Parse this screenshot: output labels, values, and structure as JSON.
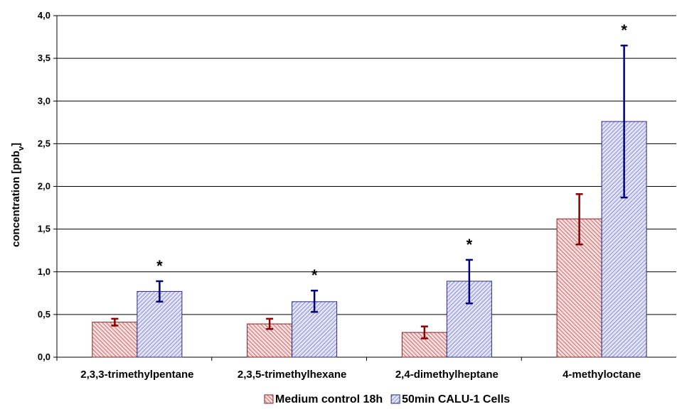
{
  "chart_data": {
    "type": "bar",
    "categories": [
      "2,3,3-trimethylpentane",
      "2,3,5-trimethylhexane",
      "2,4-dimethylheptane",
      "4-methyloctane"
    ],
    "series": [
      {
        "name": "Medium control 18h",
        "values": [
          0.41,
          0.39,
          0.29,
          1.62
        ],
        "error_low": [
          0.37,
          0.33,
          0.22,
          1.32
        ],
        "error_high": [
          0.45,
          0.45,
          0.36,
          1.91
        ],
        "color": "#c0504d",
        "error_color": "#8b0000"
      },
      {
        "name": "50min CALU-1 Cells",
        "values": [
          0.77,
          0.65,
          0.89,
          2.76
        ],
        "error_low": [
          0.65,
          0.53,
          0.63,
          1.87
        ],
        "error_high": [
          0.89,
          0.78,
          1.14,
          3.65
        ],
        "color": "#6b6fc2",
        "error_color": "#000080"
      }
    ],
    "annotations": [
      "*",
      "*",
      "*",
      "*"
    ],
    "ylabel_main": "concentration",
    "ylabel_unit_prefix": "[ppb",
    "ylabel_unit_sub": "v",
    "ylabel_unit_suffix": "]",
    "ylim": [
      0,
      4.0
    ],
    "yticks": [
      "0,0",
      "0,5",
      "1,0",
      "1,5",
      "2,0",
      "2,5",
      "3,0",
      "3,5",
      "4,0"
    ],
    "grid": true,
    "legend_position": "bottom-center"
  }
}
